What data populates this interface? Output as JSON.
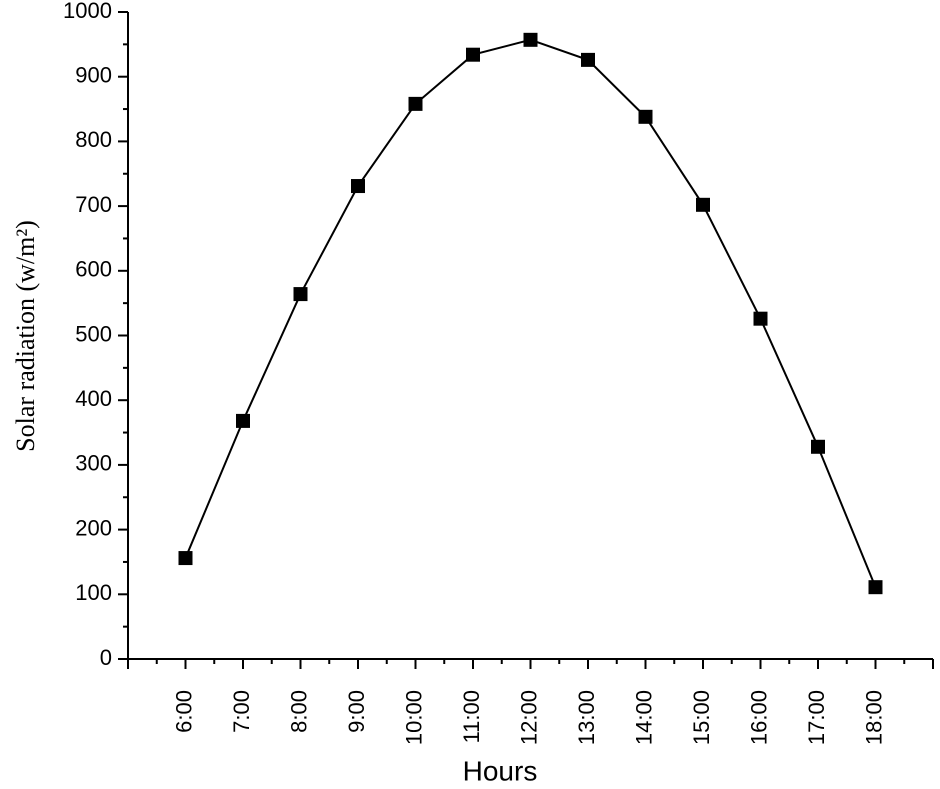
{
  "chart_data": {
    "type": "line",
    "x_label": "Hours",
    "y_label": "Solar radiation (w/m²)",
    "categories": [
      "6:00",
      "7:00",
      "8:00",
      "9:00",
      "10:00",
      "11:00",
      "12:00",
      "13:00",
      "14:00",
      "15:00",
      "16:00",
      "17:00",
      "18:00"
    ],
    "series": [
      {
        "color": "#000000",
        "values": [
          156,
          368,
          564,
          731,
          858,
          934,
          957,
          926,
          838,
          702,
          526,
          328,
          111
        ]
      }
    ],
    "ylim": [
      0,
      1000
    ],
    "yticks": [
      0,
      100,
      200,
      300,
      400,
      500,
      600,
      700,
      800,
      900,
      1000
    ]
  }
}
